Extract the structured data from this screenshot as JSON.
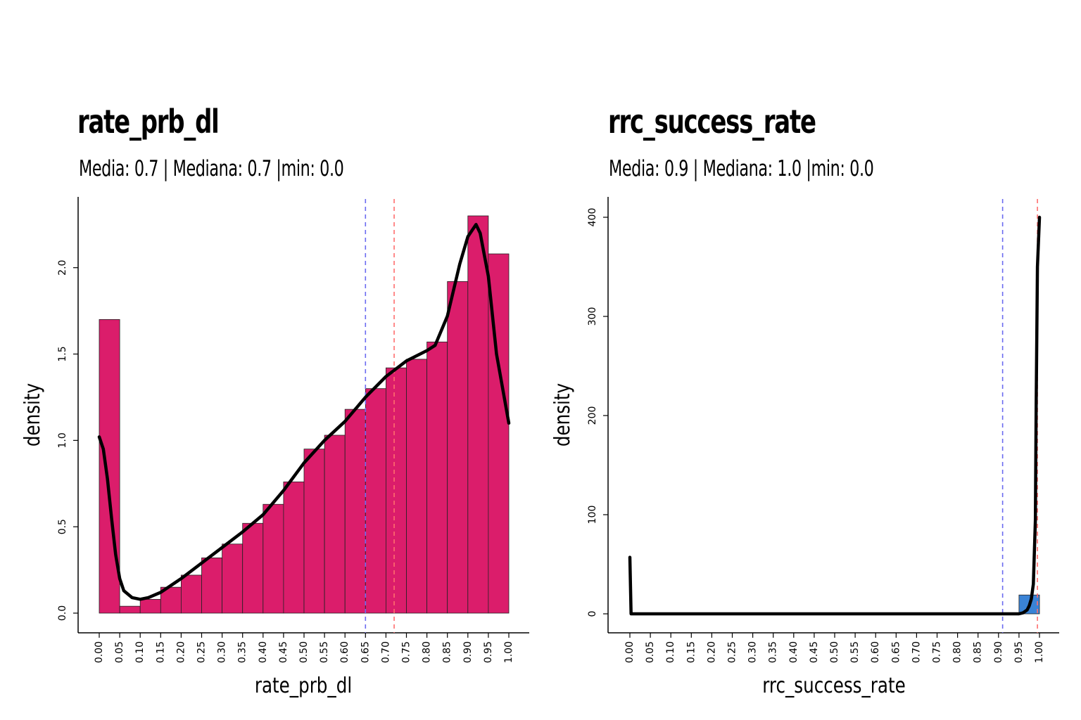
{
  "chart_data": [
    {
      "type": "histogram",
      "title": "rate_prb_dl",
      "subtitle": "Media: 0.7 | Mediana: 0.7 |min: 0.0",
      "xlabel": "rate_prb_dl",
      "ylabel": "density",
      "fill_color": "#DB1D6B",
      "xlim": [
        0,
        1
      ],
      "ylim": [
        0,
        2.3
      ],
      "x_ticks": [
        "0.00",
        "0.05",
        "0.10",
        "0.15",
        "0.20",
        "0.25",
        "0.30",
        "0.35",
        "0.40",
        "0.45",
        "0.50",
        "0.55",
        "0.60",
        "0.65",
        "0.70",
        "0.75",
        "0.80",
        "0.85",
        "0.90",
        "0.95",
        "1.00"
      ],
      "y_ticks": [
        "0.0",
        "0.5",
        "1.0",
        "1.5",
        "2.0"
      ],
      "bin_width": 0.05,
      "bins": [
        0.0,
        0.05,
        0.1,
        0.15,
        0.2,
        0.25,
        0.3,
        0.35,
        0.4,
        0.45,
        0.5,
        0.55,
        0.6,
        0.65,
        0.7,
        0.75,
        0.8,
        0.85,
        0.9,
        0.95
      ],
      "values": [
        1.7,
        0.04,
        0.08,
        0.15,
        0.22,
        0.32,
        0.4,
        0.52,
        0.63,
        0.76,
        0.95,
        1.03,
        1.18,
        1.3,
        1.42,
        1.47,
        1.57,
        1.92,
        2.3,
        2.08
      ],
      "density_curve": {
        "x": [
          0.0,
          0.01,
          0.02,
          0.03,
          0.04,
          0.05,
          0.06,
          0.08,
          0.1,
          0.12,
          0.15,
          0.2,
          0.25,
          0.3,
          0.35,
          0.4,
          0.45,
          0.5,
          0.55,
          0.6,
          0.65,
          0.7,
          0.75,
          0.8,
          0.82,
          0.85,
          0.88,
          0.9,
          0.92,
          0.93,
          0.95,
          0.97,
          1.0
        ],
        "y": [
          1.02,
          0.95,
          0.78,
          0.55,
          0.34,
          0.2,
          0.13,
          0.09,
          0.08,
          0.09,
          0.12,
          0.2,
          0.29,
          0.38,
          0.47,
          0.57,
          0.71,
          0.87,
          1.0,
          1.11,
          1.25,
          1.37,
          1.46,
          1.52,
          1.55,
          1.72,
          2.02,
          2.18,
          2.25,
          2.2,
          1.95,
          1.5,
          1.1
        ]
      },
      "mean_line": {
        "x": 0.65,
        "color": "#6B6BF0"
      },
      "median_line": {
        "x": 0.72,
        "color": "#FF6E6E"
      }
    },
    {
      "type": "histogram",
      "title": "rrc_success_rate",
      "subtitle": "Media: 0.9 | Mediana: 1.0 |min: 0.0",
      "xlabel": "rrc_success_rate",
      "ylabel": "density",
      "fill_color": "#3A83D6",
      "xlim": [
        0,
        1
      ],
      "ylim": [
        0,
        400
      ],
      "x_ticks": [
        "0.00",
        "0.05",
        "0.10",
        "0.15",
        "0.20",
        "0.25",
        "0.30",
        "0.35",
        "0.40",
        "0.45",
        "0.50",
        "0.55",
        "0.60",
        "0.65",
        "0.70",
        "0.75",
        "0.80",
        "0.85",
        "0.90",
        "0.95",
        "1.00"
      ],
      "y_ticks": [
        "0",
        "100",
        "200",
        "300",
        "400"
      ],
      "bin_width": 0.05,
      "bins": [
        0.95
      ],
      "values": [
        19
      ],
      "density_curve": {
        "x": [
          0.0,
          0.003,
          0.01,
          0.1,
          0.5,
          0.9,
          0.95,
          0.96,
          0.97,
          0.975,
          0.98,
          0.985,
          0.99,
          0.992,
          0.995,
          1.0
        ],
        "y": [
          57,
          0,
          0,
          0,
          0,
          0,
          0,
          1,
          4,
          8,
          15,
          30,
          95,
          210,
          350,
          400
        ]
      },
      "mean_line": {
        "x": 0.91,
        "color": "#6B6BF0"
      },
      "median_line": {
        "x": 0.995,
        "color": "#FF6E6E"
      }
    }
  ]
}
